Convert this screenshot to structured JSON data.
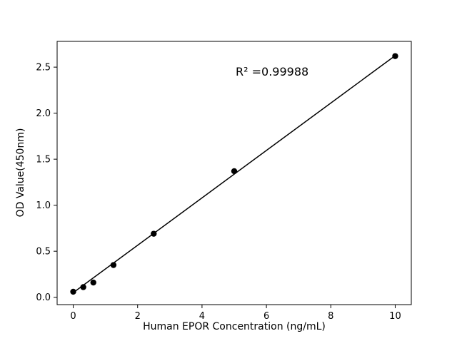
{
  "chart_data": {
    "type": "scatter",
    "title": "",
    "xlabel": "Human EPOR Concentration (ng/mL)",
    "ylabel": "OD Value(450nm)",
    "annotation": "R² =0.99988",
    "x": [
      0,
      0.3125,
      0.625,
      1.25,
      2.5,
      5,
      10
    ],
    "y": [
      0.06,
      0.11,
      0.16,
      0.35,
      0.69,
      1.37,
      2.62
    ],
    "fit_line": {
      "x": [
        0,
        10
      ],
      "y": [
        0.05,
        2.625
      ]
    },
    "xlim": [
      -0.5,
      10.5
    ],
    "ylim": [
      -0.08,
      2.78
    ],
    "xticks": [
      "0",
      "2",
      "4",
      "6",
      "8",
      "10"
    ],
    "xtick_values": [
      0,
      2,
      4,
      6,
      8,
      10
    ],
    "yticks": [
      "0.0",
      "0.5",
      "1.0",
      "1.5",
      "2.0",
      "2.5"
    ],
    "ytick_values": [
      0.0,
      0.5,
      1.0,
      1.5,
      2.0,
      2.5
    ],
    "grid": false,
    "legend": "none",
    "marker_color": "#000000",
    "line_color": "#000000",
    "background_color": "#ffffff"
  }
}
